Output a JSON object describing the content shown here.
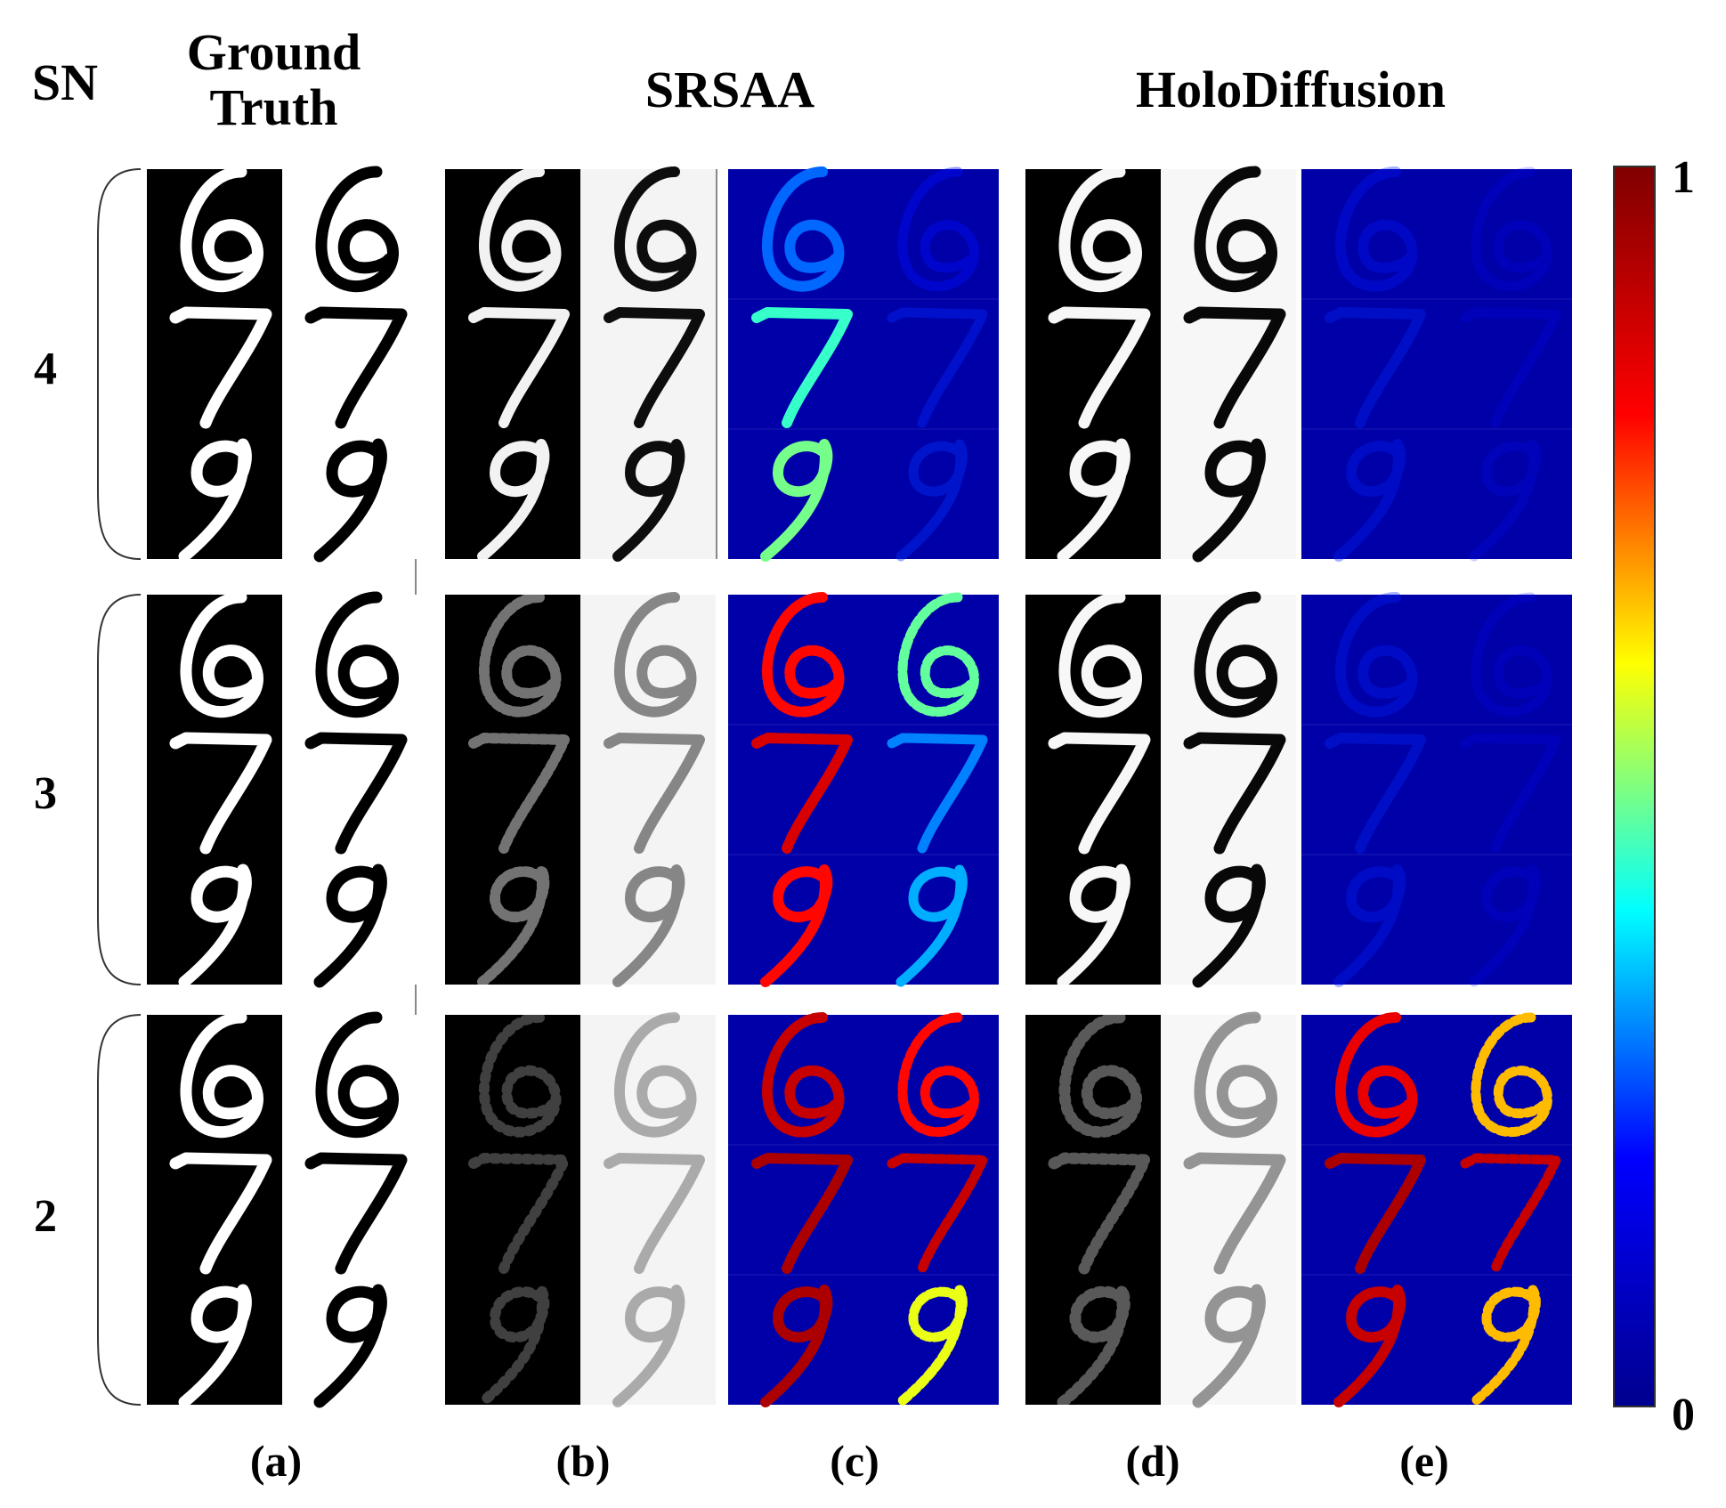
{
  "headers": {
    "sn": "SN",
    "ground_truth_line1": "Ground",
    "ground_truth_line2": "Truth",
    "srsaa": "SRSAA",
    "holodiffusion": "HoloDiffusion"
  },
  "sn_levels": [
    "4",
    "3",
    "2"
  ],
  "digits": [
    "6",
    "7",
    "9"
  ],
  "sub_labels": [
    "(a)",
    "(b)",
    "(c)",
    "(d)",
    "(e)"
  ],
  "colorbar": {
    "max_label": "1",
    "min_label": "0",
    "colormap": "jet",
    "colors": [
      "#00008f",
      "#0000ff",
      "#00ffff",
      "#ffff00",
      "#ff0000",
      "#800000"
    ]
  },
  "error_levels": {
    "note_values_are_fractions_0_to_1": true,
    "srsaa": [
      [
        [
          0.12,
          0.02
        ],
        [
          0.35,
          0.05
        ],
        [
          0.42,
          0.06
        ]
      ],
      [
        [
          0.85,
          0.4
        ],
        [
          0.9,
          0.15
        ],
        [
          0.85,
          0.2
        ]
      ],
      [
        [
          0.92,
          0.85
        ],
        [
          0.95,
          0.92
        ],
        [
          0.95,
          0.55
        ]
      ]
    ],
    "holodiffusion": [
      [
        [
          0.03,
          0.01
        ],
        [
          0.05,
          0.01
        ],
        [
          0.04,
          0.02
        ]
      ],
      [
        [
          0.04,
          0.01
        ],
        [
          0.05,
          0.01
        ],
        [
          0.04,
          0.01
        ]
      ],
      [
        [
          0.88,
          0.65
        ],
        [
          0.95,
          0.92
        ],
        [
          0.92,
          0.65
        ]
      ]
    ]
  },
  "recon_quality": {
    "srsaa": [
      0.95,
      0.45,
      0.25
    ],
    "holodiffusion": [
      0.97,
      0.97,
      0.35
    ]
  }
}
